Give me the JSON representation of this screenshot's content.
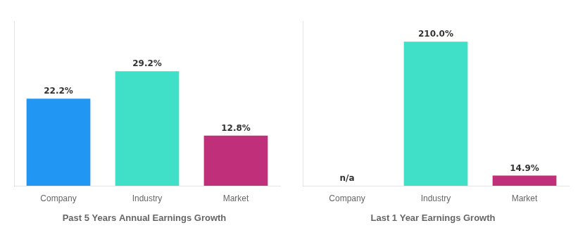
{
  "chart_data": [
    {
      "type": "bar",
      "title": "Past 5 Years Annual Earnings Growth",
      "categories": [
        "Company",
        "Industry",
        "Market"
      ],
      "values": [
        22.2,
        29.2,
        12.8
      ],
      "value_labels": [
        "22.2%",
        "29.2%",
        "12.8%"
      ],
      "colors": [
        "#2196f3",
        "#40e0c8",
        "#c0307a"
      ],
      "ylim": [
        0,
        42
      ],
      "data_labels": true,
      "tick_labels": "x",
      "grid": false
    },
    {
      "type": "bar",
      "title": "Last 1 Year Earnings Growth",
      "categories": [
        "Company",
        "Industry",
        "Market"
      ],
      "values": [
        null,
        210.0,
        14.9
      ],
      "value_labels": [
        "n/a",
        "210.0%",
        "14.9%"
      ],
      "colors": [
        "#2196f3",
        "#40e0c8",
        "#c0307a"
      ],
      "ylim": [
        0,
        240
      ],
      "data_labels": true,
      "tick_labels": "x",
      "grid": false
    }
  ]
}
